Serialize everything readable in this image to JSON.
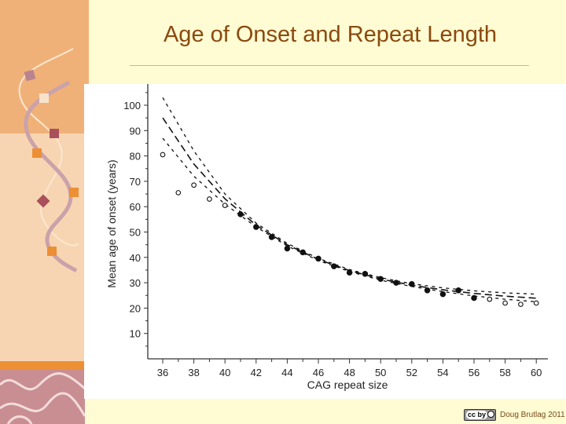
{
  "slide": {
    "title": "Age of Onset and Repeat Length",
    "footer": "Doug Brutlag 2011",
    "license_badge": "cc by"
  },
  "colors": {
    "title": "#8a4a10",
    "background": "#fffbd2",
    "accent_orange": "#ec8f35"
  },
  "chart_data": {
    "type": "scatter",
    "title": "",
    "xlabel": "CAG repeat size",
    "ylabel": "Mean age of onset (years)",
    "xlim": [
      35,
      61
    ],
    "ylim": [
      0,
      108
    ],
    "xticks": [
      36,
      38,
      40,
      42,
      44,
      46,
      48,
      50,
      52,
      54,
      56,
      58,
      60
    ],
    "yticks": [
      10,
      20,
      30,
      40,
      50,
      60,
      70,
      80,
      90,
      100
    ],
    "grid": false,
    "series": [
      {
        "name": "open",
        "marker": "open-circle",
        "x": [
          36,
          37,
          38,
          39,
          40,
          57,
          58,
          59,
          60
        ],
        "y": [
          80.5,
          65.5,
          68.5,
          63,
          60.5,
          23.5,
          22,
          21.5,
          22
        ]
      },
      {
        "name": "filled",
        "marker": "filled-circle",
        "x": [
          41,
          42,
          43,
          44,
          45,
          46,
          47,
          48,
          49,
          50,
          51,
          52,
          53,
          54,
          55,
          56
        ],
        "y": [
          57,
          52,
          48,
          43.5,
          42,
          39.5,
          36.5,
          34,
          33.5,
          31.5,
          30,
          29.5,
          27,
          25.5,
          27,
          24
        ]
      },
      {
        "name": "fit",
        "style": "long-dash",
        "x": [
          36,
          38,
          40,
          42,
          44,
          46,
          48,
          50,
          52,
          54,
          56,
          58,
          60
        ],
        "y": [
          95,
          76.8,
          63.1,
          52.7,
          45,
          39.2,
          34.8,
          31.5,
          29,
          27.2,
          25.8,
          24.7,
          23.9
        ]
      },
      {
        "name": "upper-bound",
        "style": "short-dash",
        "x": [
          36,
          38,
          40,
          42,
          44,
          46,
          48,
          50,
          52,
          54,
          56,
          58,
          60
        ],
        "y": [
          103,
          82,
          65,
          53.5,
          45.5,
          39.6,
          35.2,
          32,
          29.6,
          28,
          26.8,
          26,
          25.5
        ]
      },
      {
        "name": "lower-bound",
        "style": "short-dash",
        "x": [
          36,
          38,
          40,
          42,
          44,
          46,
          48,
          50,
          52,
          54,
          56,
          58,
          60
        ],
        "y": [
          87,
          72,
          61,
          52,
          44.5,
          38.8,
          34.4,
          31,
          28.5,
          26.5,
          24.8,
          23.5,
          22.5
        ]
      }
    ]
  }
}
